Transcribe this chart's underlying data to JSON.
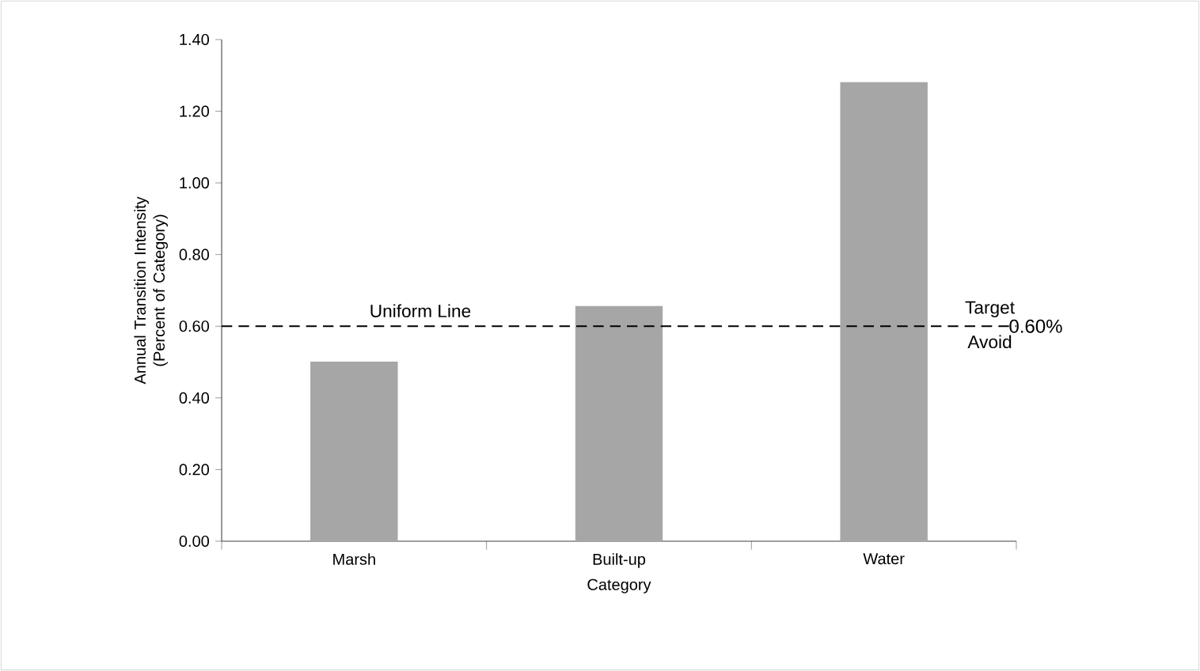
{
  "chart_data": {
    "type": "bar",
    "xlabel": "Category",
    "ylabel": "Annual Transition Intensity (Percent of Category)",
    "categories": [
      "Marsh",
      "Built-up",
      "Water"
    ],
    "values": [
      0.5,
      0.655,
      1.28
    ],
    "color": "#a6a6a6",
    "ylim": [
      0,
      1.4
    ],
    "yticks": [
      {
        "value": 0,
        "label": "0.00"
      },
      {
        "value": 0.2,
        "label": "0.20"
      },
      {
        "value": 0.4,
        "label": "0.40"
      },
      {
        "value": 0.6,
        "label": "0.60"
      },
      {
        "value": 0.8,
        "label": "0.80"
      },
      {
        "value": 1.0,
        "label": "1.00"
      },
      {
        "value": 1.2,
        "label": "1.20"
      },
      {
        "value": 1.4,
        "label": "1.40"
      }
    ],
    "ref_lines": [
      {
        "axis": "y",
        "value": 0.6,
        "label": "0.60%",
        "line_style": "dashed",
        "color": "#000000"
      }
    ],
    "annotations": [
      "Uniform Line",
      "Target",
      "Avoid"
    ],
    "grid": false
  }
}
